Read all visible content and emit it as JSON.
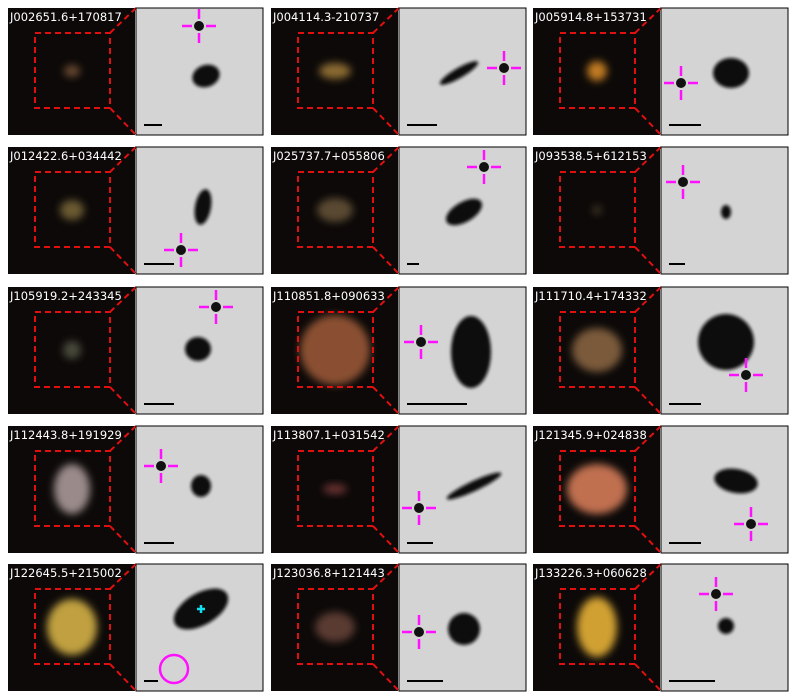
{
  "panels": [
    {
      "label": "J002651.6+170817"
    },
    {
      "label": "J004114.3-210737"
    },
    {
      "label": "J005914.8+153731"
    },
    {
      "label": "J012422.6+034442"
    },
    {
      "label": "J025737.7+055806"
    },
    {
      "label": "J093538.5+612153"
    },
    {
      "label": "J105919.2+243345"
    },
    {
      "label": "J110851.8+090633"
    },
    {
      "label": "J111710.4+174332"
    },
    {
      "label": "J112443.8+191929"
    },
    {
      "label": "J113807.1+031542"
    },
    {
      "label": "J121345.9+024838"
    },
    {
      "label": "J122645.5+215002"
    },
    {
      "label": "J123036.8+121443"
    },
    {
      "label": "J133226.3+060628"
    }
  ]
}
